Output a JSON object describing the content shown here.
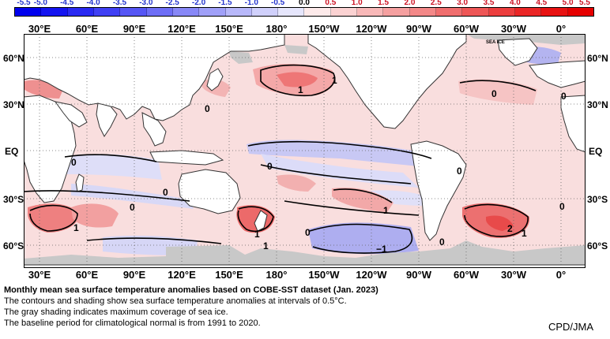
{
  "colorbar": {
    "ticks": [
      "-5.5",
      "-5.0",
      "-4.5",
      "-4.0",
      "-3.5",
      "-3.0",
      "-2.5",
      "-2.0",
      "-1.5",
      "-1.0",
      "-0.5",
      "0.0",
      "0.5",
      "1.0",
      "1.5",
      "2.0",
      "2.5",
      "3.0",
      "3.5",
      "4.0",
      "4.5",
      "5.0",
      "5.5"
    ],
    "colors": [
      "#0000ee",
      "#1414f0",
      "#2a2af2",
      "#4040f4",
      "#5656f5",
      "#6e6ef6",
      "#8888f7",
      "#a0a0f8",
      "#b8b8fa",
      "#d0d0fb",
      "#e6e6fc",
      "#fdeaea",
      "#fbd2d2",
      "#f8b8b8",
      "#f5a0a0",
      "#f38888",
      "#f06e6e",
      "#ee5656",
      "#ec3e3e",
      "#ea2626",
      "#e81212",
      "#e60000"
    ]
  },
  "longitudes": [
    "30°E",
    "60°E",
    "90°E",
    "120°E",
    "150°E",
    "180°",
    "150°W",
    "120°W",
    "90°W",
    "60°W",
    "30°W",
    "0°"
  ],
  "latitudes": [
    "60°N",
    "30°N",
    "EQ",
    "30°S",
    "60°S"
  ],
  "contour_labels": [
    "1",
    "0",
    "1",
    "0",
    "0",
    "0",
    "0",
    "1",
    "0",
    "0",
    "1",
    "1",
    "0",
    "1",
    "−1",
    "2",
    "1",
    "0",
    "0",
    "0"
  ],
  "map_note": "SEA ICE",
  "caption": {
    "title": "Monthly mean sea surface temperature anomalies based on COBE-SST dataset (Jan. 2023)",
    "line1": "The contours and shading show sea surface temperature anomalies at intervals of 0.5°C.",
    "line2": "The gray shading indicates maximum coverage of sea ice.",
    "line3": "The baseline period for climatological normal is from 1991 to 2020."
  },
  "credit": "CPD/JMA",
  "colors": {
    "ocean_base": "#f9dede",
    "land": "#ffffff",
    "sea_ice": "#c8c8c8",
    "coast": "#333333"
  }
}
